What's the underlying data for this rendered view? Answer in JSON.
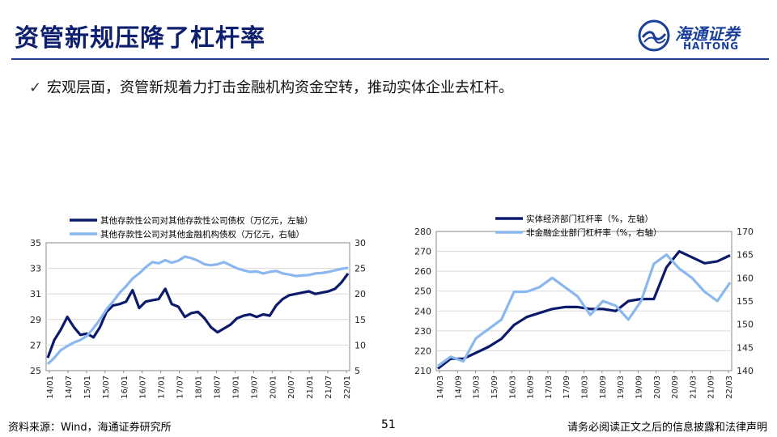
{
  "header": {
    "title": "资管新规压降了杠杆率",
    "logo_cn": "海通证券",
    "logo_en": "HAITONG",
    "accent": "#1a3f9b"
  },
  "bullet": {
    "mark": "✓",
    "text": "宏观层面，资管新规着力打击金融机构资金空转，推动实体企业去杠杆。"
  },
  "footer": {
    "source": "资料来源：Wind，海通证券研究所",
    "page": "51",
    "disclaimer": "请务必阅读正文之后的信息披露和法律声明"
  },
  "chart_data": [
    {
      "type": "line",
      "title": "",
      "legend_position": "top",
      "x_ticks": [
        "14/01",
        "14/07",
        "15/01",
        "15/07",
        "16/01",
        "16/07",
        "17/01",
        "17/07",
        "18/01",
        "18/07",
        "19/01",
        "19/07",
        "20/01",
        "20/07",
        "21/01",
        "21/07",
        "22/01"
      ],
      "left_axis": {
        "min": 25,
        "max": 35,
        "ticks": [
          "25",
          "27",
          "29",
          "31",
          "33",
          "35"
        ]
      },
      "right_axis": {
        "min": 5,
        "max": 30,
        "ticks": [
          "5",
          "10",
          "15",
          "20",
          "25",
          "30"
        ]
      },
      "series": [
        {
          "name": "其他存款性公司对其他存款性公司债权（万亿元，左轴）",
          "axis": "left",
          "color": "#0c1a6b",
          "values": [
            26.0,
            27.4,
            28.2,
            29.2,
            28.4,
            27.8,
            27.9,
            27.6,
            28.4,
            29.6,
            30.1,
            30.2,
            30.4,
            31.3,
            29.9,
            30.4,
            30.5,
            30.6,
            31.4,
            30.2,
            30.0,
            29.2,
            29.5,
            29.6,
            29.1,
            28.4,
            28.0,
            28.3,
            28.6,
            29.1,
            29.3,
            29.4,
            29.2,
            29.4,
            29.3,
            30.1,
            30.6,
            30.9,
            31.0,
            31.1,
            31.2,
            31.0,
            31.1,
            31.2,
            31.4,
            31.9,
            32.6
          ]
        },
        {
          "name": "其他存款性公司对其他金融机构债权（万亿元，右轴）",
          "axis": "right",
          "color": "#8ab8ee",
          "values": [
            6.3,
            7.5,
            9.0,
            9.8,
            10.5,
            11.0,
            11.8,
            13.3,
            15.0,
            17.0,
            18.5,
            20.2,
            21.5,
            23.0,
            24.0,
            25.2,
            26.2,
            26.0,
            26.6,
            26.1,
            26.5,
            27.3,
            27.0,
            26.5,
            25.8,
            25.6,
            25.8,
            26.2,
            25.6,
            25.0,
            24.6,
            24.3,
            24.4,
            24.0,
            24.3,
            24.5,
            24.0,
            23.8,
            23.5,
            23.6,
            23.7,
            24.0,
            24.1,
            24.3,
            24.6,
            24.9,
            25.1
          ]
        }
      ]
    },
    {
      "type": "line",
      "title": "",
      "legend_position": "top",
      "x_ticks": [
        "14/03",
        "14/09",
        "15/03",
        "15/09",
        "16/03",
        "16/09",
        "17/03",
        "17/09",
        "18/03",
        "18/09",
        "19/03",
        "19/09",
        "20/03",
        "20/09",
        "21/03",
        "21/09",
        "22/03"
      ],
      "left_axis": {
        "min": 210,
        "max": 280,
        "ticks": [
          "210",
          "220",
          "230",
          "240",
          "250",
          "260",
          "270",
          "280"
        ]
      },
      "right_axis": {
        "min": 140,
        "max": 170,
        "ticks": [
          "140",
          "145",
          "150",
          "155",
          "160",
          "165",
          "170"
        ]
      },
      "series": [
        {
          "name": "实体经济部门杠杆率（%，左轴）",
          "axis": "left",
          "color": "#0c1a6b",
          "values": [
            211,
            216,
            216,
            219,
            222,
            226,
            233,
            237,
            239,
            241,
            242,
            242,
            241,
            241,
            240,
            245,
            246,
            246,
            262,
            270,
            267,
            264,
            265,
            268
          ]
        },
        {
          "name": "非金融企业部门杠杆率（%，右轴）",
          "axis": "right",
          "color": "#8ab8ee",
          "values": [
            141,
            143,
            142,
            147,
            149,
            151,
            157,
            157,
            158,
            160,
            158,
            156,
            152,
            155,
            154,
            151,
            155,
            163,
            165,
            162,
            160,
            157,
            155,
            159
          ]
        }
      ]
    }
  ]
}
